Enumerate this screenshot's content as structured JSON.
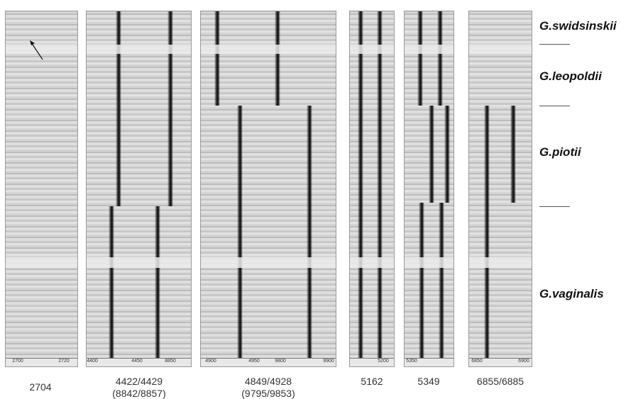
{
  "species": [
    "G.swidsinskii",
    "G.leopoldii",
    "G.piotii",
    "G.vaginalis"
  ],
  "panels": [
    {
      "label": "2704",
      "ticks": [
        "2700",
        "2720"
      ]
    },
    {
      "label": "4422/4429",
      "sublabel": "(8842/8857)",
      "ticks": [
        "4400",
        "4450",
        "8850"
      ]
    },
    {
      "label": "4849/4928",
      "sublabel": "(9795/9853)",
      "ticks": [
        "4900",
        "4950",
        "9800",
        "9900"
      ]
    },
    {
      "label": "5162",
      "ticks": [
        "5200"
      ]
    },
    {
      "label": "5349",
      "ticks": [
        "5350"
      ]
    },
    {
      "label": "6855/6885",
      "ticks": [
        "6850",
        "6900"
      ]
    }
  ]
}
